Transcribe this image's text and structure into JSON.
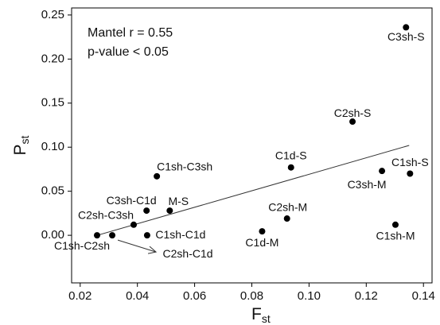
{
  "chart_data": {
    "type": "scatter",
    "x_label": {
      "main": "F",
      "sub": "st"
    },
    "y_label": {
      "main": "P",
      "sub": "st"
    },
    "annotations": [
      "Mantel r = 0.55",
      "p-value < 0.05"
    ],
    "xlim": [
      0.017,
      0.143
    ],
    "ylim": [
      -0.054,
      0.258
    ],
    "xticks": [
      0.02,
      0.04,
      0.06,
      0.08,
      {
        "value": 0.1,
        "label": "0.10"
      },
      0.12,
      0.14
    ],
    "yticks": [
      {
        "value": 0,
        "label": "0.00"
      },
      0.05,
      {
        "value": 0.1,
        "label": "0.10"
      },
      0.15,
      {
        "value": 0.2,
        "label": "0.20"
      },
      0.25
    ],
    "color": "#000000",
    "point_labels": [
      "C3sh-S",
      "C2sh-S",
      "C1d-S",
      "C1sh-S",
      "C3sh-M",
      "C1sh-M",
      "C2sh-M",
      "C1d-M",
      "C1sh-C3sh",
      "M-S",
      "C3sh-C1d",
      "C2sh-C3sh",
      "C1sh-C1d",
      "C1sh-C2sh",
      "C2sh-C1d"
    ],
    "x": [
      0.1339,
      0.1152,
      0.0937,
      0.1353,
      0.1255,
      0.1302,
      0.0923,
      0.0836,
      0.0468,
      0.0513,
      0.0432,
      0.0387,
      0.0434,
      0.0259,
      0.0312
    ],
    "values": [
      0.236,
      0.129,
      0.077,
      0.07,
      0.073,
      0.012,
      0.019,
      0.0045,
      0.067,
      0.028,
      0.028,
      0.012,
      0,
      0,
      0
    ],
    "trendline": {
      "x": [
        0.026,
        0.135
      ],
      "y": [
        0,
        0.102
      ]
    }
  }
}
